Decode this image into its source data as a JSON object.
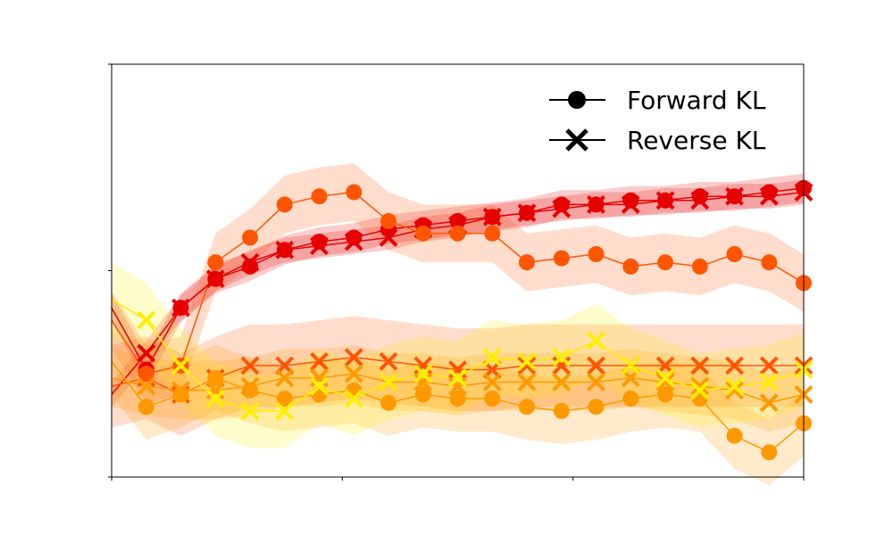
{
  "chart_data": {
    "type": "line",
    "title": "",
    "xlabel": "",
    "ylabel": "",
    "xlim": [
      0,
      300
    ],
    "ylim": [
      0,
      1
    ],
    "x_ticks": [
      0,
      100,
      200,
      300
    ],
    "y_ticks": [
      0,
      0.5,
      1
    ],
    "grid": false,
    "legend": {
      "position": "top-right",
      "entries": [
        {
          "label": "Forward KL",
          "marker": "circle"
        },
        {
          "label": "Reverse KL",
          "marker": "x"
        }
      ]
    },
    "series": [
      {
        "name": "Forward KL (red)",
        "color": "#e60000",
        "marker": "circle",
        "band": 0.035,
        "x": [
          0,
          15,
          30,
          45,
          60,
          75,
          90,
          105,
          120,
          135,
          150,
          165,
          180,
          195,
          210,
          225,
          240,
          255,
          270,
          285,
          300
        ],
        "y": [
          0.41,
          0.26,
          0.41,
          0.48,
          0.51,
          0.55,
          0.57,
          0.58,
          0.6,
          0.61,
          0.62,
          0.63,
          0.64,
          0.66,
          0.66,
          0.67,
          0.67,
          0.68,
          0.68,
          0.69,
          0.7
        ]
      },
      {
        "name": "Reverse KL (red)",
        "color": "#e60000",
        "marker": "x",
        "band": 0.03,
        "x": [
          0,
          15,
          30,
          45,
          60,
          75,
          90,
          105,
          120,
          135,
          150,
          165,
          180,
          195,
          210,
          225,
          240,
          255,
          270,
          285,
          300
        ],
        "y": [
          0.2,
          0.3,
          0.41,
          0.48,
          0.52,
          0.55,
          0.56,
          0.57,
          0.58,
          0.6,
          0.61,
          0.63,
          0.64,
          0.65,
          0.66,
          0.66,
          0.67,
          0.67,
          0.68,
          0.68,
          0.69
        ]
      },
      {
        "name": "Forward KL (orange-red)",
        "color": "#ff5500",
        "marker": "circle",
        "band": 0.07,
        "x": [
          0,
          15,
          30,
          45,
          60,
          75,
          90,
          105,
          120,
          135,
          150,
          165,
          180,
          195,
          210,
          225,
          240,
          255,
          270,
          285,
          300
        ],
        "y": [
          0.38,
          0.25,
          0.27,
          0.52,
          0.58,
          0.66,
          0.68,
          0.69,
          0.62,
          0.59,
          0.59,
          0.59,
          0.52,
          0.53,
          0.54,
          0.51,
          0.52,
          0.51,
          0.54,
          0.52,
          0.47
        ]
      },
      {
        "name": "Reverse KL (orange-red)",
        "color": "#ff5500",
        "marker": "x",
        "band": 0.1,
        "x": [
          0,
          15,
          30,
          45,
          60,
          75,
          90,
          105,
          120,
          135,
          150,
          165,
          180,
          195,
          210,
          225,
          240,
          255,
          270,
          285,
          300
        ],
        "y": [
          0.22,
          0.24,
          0.2,
          0.24,
          0.27,
          0.27,
          0.28,
          0.29,
          0.28,
          0.27,
          0.26,
          0.26,
          0.27,
          0.27,
          0.27,
          0.27,
          0.27,
          0.27,
          0.27,
          0.27,
          0.27
        ]
      },
      {
        "name": "Forward KL (orange)",
        "color": "#ff9900",
        "marker": "circle",
        "band": 0.08,
        "x": [
          0,
          15,
          30,
          45,
          60,
          75,
          90,
          105,
          120,
          135,
          150,
          165,
          180,
          195,
          210,
          225,
          240,
          255,
          270,
          285,
          300
        ],
        "y": [
          0.28,
          0.17,
          0.2,
          0.24,
          0.21,
          0.19,
          0.2,
          0.21,
          0.18,
          0.2,
          0.19,
          0.19,
          0.17,
          0.16,
          0.17,
          0.19,
          0.2,
          0.19,
          0.1,
          0.06,
          0.13
        ]
      },
      {
        "name": "Reverse KL (orange)",
        "color": "#ff9900",
        "marker": "x",
        "band": 0.07,
        "x": [
          0,
          15,
          30,
          45,
          60,
          75,
          90,
          105,
          120,
          135,
          150,
          165,
          180,
          195,
          210,
          225,
          240,
          255,
          270,
          285,
          300
        ],
        "y": [
          0.24,
          0.22,
          0.21,
          0.21,
          0.22,
          0.24,
          0.24,
          0.25,
          0.23,
          0.23,
          0.22,
          0.23,
          0.23,
          0.23,
          0.23,
          0.24,
          0.23,
          0.22,
          0.21,
          0.18,
          0.2
        ]
      },
      {
        "name": "Reverse KL (yellow)",
        "color": "#ffee00",
        "marker": "x",
        "band": 0.09,
        "x": [
          0,
          15,
          30,
          45,
          60,
          75,
          90,
          105,
          120,
          135,
          150,
          165,
          180,
          195,
          210,
          225,
          240,
          255,
          270,
          285,
          300
        ],
        "y": [
          0.43,
          0.38,
          0.27,
          0.19,
          0.16,
          0.16,
          0.22,
          0.19,
          0.23,
          0.25,
          0.24,
          0.29,
          0.28,
          0.29,
          0.33,
          0.27,
          0.24,
          0.21,
          0.22,
          0.23,
          0.26
        ]
      }
    ]
  }
}
